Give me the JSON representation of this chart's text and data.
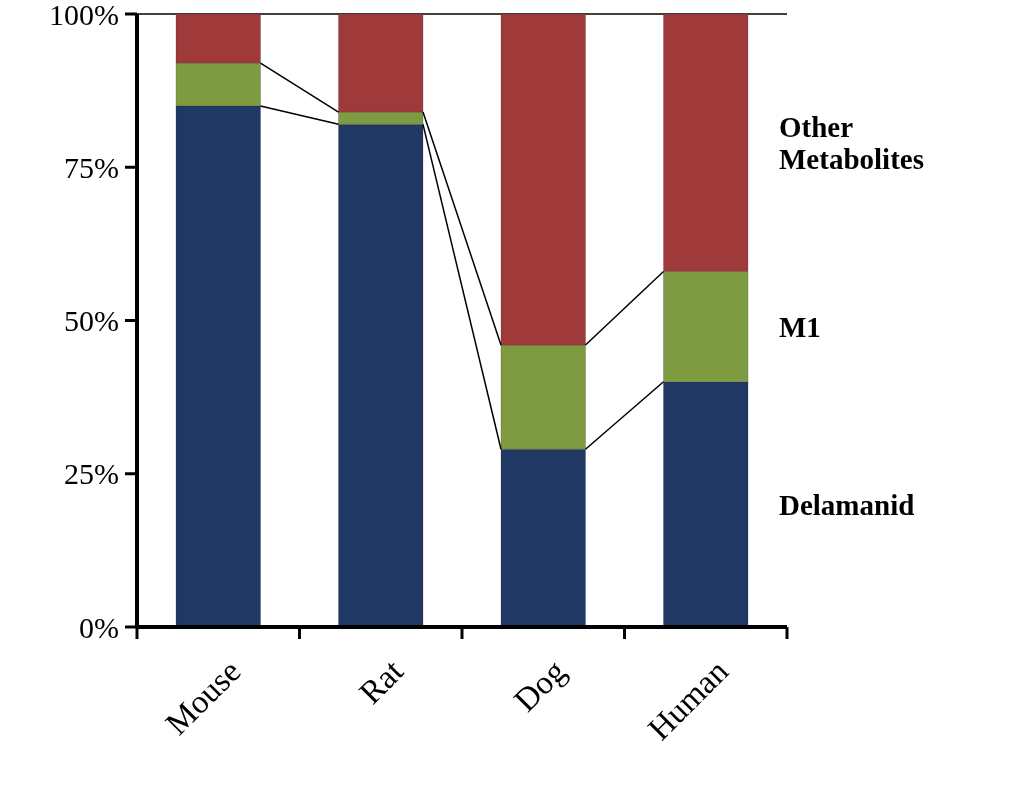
{
  "chart_data": {
    "type": "bar",
    "stacked": true,
    "categories": [
      "Mouse",
      "Rat",
      "Dog",
      "Human"
    ],
    "series": [
      {
        "name": "Delamanid",
        "color": "#1f3864",
        "values": [
          85,
          82,
          29,
          40
        ]
      },
      {
        "name": "M1",
        "color": "#7f9b42",
        "values": [
          7,
          2,
          17,
          18
        ]
      },
      {
        "name": "Other Metabolites",
        "color": "#a03a3a",
        "values": [
          8,
          16,
          54,
          42
        ]
      }
    ],
    "ylim": [
      0,
      100
    ],
    "yticks": [
      {
        "value": 0,
        "label": "0%"
      },
      {
        "value": 25,
        "label": "25%"
      },
      {
        "value": 50,
        "label": "50%"
      },
      {
        "value": 75,
        "label": "75%"
      },
      {
        "value": 100,
        "label": "100%"
      }
    ],
    "grid": false,
    "legend": "right"
  }
}
